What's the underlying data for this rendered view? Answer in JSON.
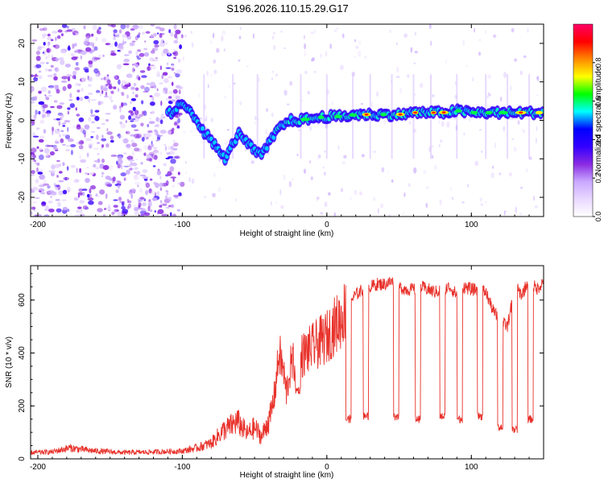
{
  "figure_title": "S196.2026.110.15.29.G17",
  "colors": {
    "snr_line": "#e8312a",
    "background": "#ffffff",
    "axis": "#000000"
  },
  "chart_data": [
    {
      "id": "spectrogram",
      "type": "heatmap",
      "title": "S196.2026.110.15.29.G17",
      "xlabel": "Height of straight line (km)",
      "ylabel": "Frequency (Hz)",
      "xlim": [
        -205,
        150
      ],
      "ylim": [
        -25,
        25
      ],
      "x_ticks": [
        -200,
        -100,
        0,
        100
      ],
      "y_ticks": [
        -20,
        -10,
        0,
        10,
        20
      ],
      "colorbar": {
        "label": "Normalized spectral amplitude",
        "range": [
          0,
          1
        ],
        "ticks": [
          0.0,
          0.2,
          0.4,
          0.6,
          0.8
        ],
        "tick_labels": [
          "0.0",
          "0.2",
          "0.4",
          "0.6",
          "0.8"
        ],
        "colormap": [
          "#ffffff",
          "#e9d8ff",
          "#c9a8ff",
          "#8a2be2",
          "#3300ff",
          "#0000ff",
          "#00ffff",
          "#00ff00",
          "#ffff00",
          "#ff8800",
          "#ff0000",
          "#ff0066"
        ]
      },
      "ridge": {
        "x": [
          -105,
          -100,
          -95,
          -90,
          -85,
          -80,
          -75,
          -70,
          -65,
          -60,
          -55,
          -50,
          -45,
          -40,
          -35,
          -30,
          -25,
          -20,
          -10,
          0,
          10,
          20,
          30,
          40,
          50,
          60,
          70,
          80,
          90,
          100,
          110,
          120,
          130,
          140,
          150
        ],
        "y": [
          3,
          4,
          3,
          0,
          -3,
          -5,
          -8,
          -10,
          -6,
          -3,
          -6,
          -8,
          -9,
          -6,
          -3,
          -1,
          0,
          0,
          0.5,
          1,
          1,
          1.5,
          1.5,
          1.5,
          1.5,
          2,
          2,
          2,
          2.5,
          2,
          2,
          2,
          2,
          2,
          2
        ]
      }
    },
    {
      "id": "snr",
      "type": "line",
      "xlabel": "Height of straight line (km)",
      "ylabel": "SNR (10 * v/v)",
      "xlim": [
        -205,
        150
      ],
      "ylim": [
        0,
        730
      ],
      "x_ticks": [
        -200,
        -100,
        0,
        100
      ],
      "y_ticks": [
        0,
        200,
        400,
        600
      ],
      "series": [
        {
          "name": "SNR",
          "x": [
            -205,
            -190,
            -178,
            -160,
            -140,
            -120,
            -100,
            -90,
            -80,
            -72,
            -68,
            -62,
            -55,
            -50,
            -45,
            -40,
            -36,
            -33,
            -30,
            -28,
            -25,
            -20,
            -15,
            -10,
            -5,
            0,
            5,
            10,
            15,
            20,
            25,
            30,
            35,
            40,
            45,
            50,
            55,
            60,
            65,
            70,
            75,
            80,
            85,
            90,
            95,
            100,
            105,
            110,
            115,
            120,
            125,
            130,
            135,
            140,
            145,
            150
          ],
          "values": [
            20,
            22,
            35,
            25,
            20,
            22,
            25,
            35,
            50,
            90,
            100,
            120,
            80,
            100,
            70,
            130,
            250,
            400,
            330,
            250,
            350,
            380,
            400,
            420,
            440,
            460,
            500,
            530,
            590,
            620,
            640,
            650,
            660,
            660,
            670,
            650,
            640,
            640,
            650,
            640,
            630,
            640,
            650,
            620,
            650,
            640,
            640,
            630,
            560,
            520,
            500,
            650,
            620,
            680,
            640,
            670
          ]
        }
      ],
      "dips": [
        {
          "x": -20,
          "depth": 260
        },
        {
          "x": 15,
          "depth": 150
        },
        {
          "x": 27,
          "depth": 160
        },
        {
          "x": 48,
          "depth": 160
        },
        {
          "x": 63,
          "depth": 150
        },
        {
          "x": 80,
          "depth": 160
        },
        {
          "x": 92,
          "depth": 150
        },
        {
          "x": 106,
          "depth": 160
        },
        {
          "x": 120,
          "depth": 120
        },
        {
          "x": 130,
          "depth": 110
        },
        {
          "x": 141,
          "depth": 150
        }
      ]
    }
  ]
}
